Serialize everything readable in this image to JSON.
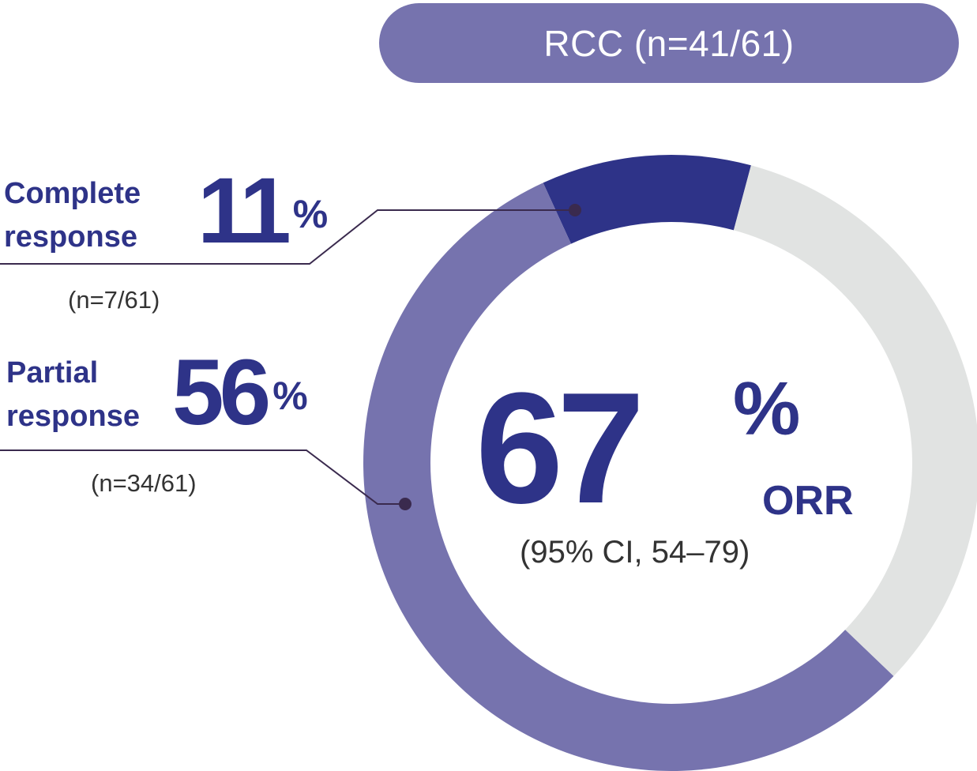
{
  "chart_data": {
    "type": "pie",
    "header": "RCC (n=41/61)",
    "center": {
      "value": "67",
      "unit": "%",
      "label": "ORR",
      "ci": "(95% CI, 54–79)"
    },
    "slices": [
      {
        "key": "complete",
        "label_line1": "Complete",
        "label_line2": "response",
        "value": 11,
        "value_text": "11",
        "unit": "%",
        "n": "(n=7/61)",
        "color": "#2e3388"
      },
      {
        "key": "partial",
        "label_line1": "Partial",
        "label_line2": "response",
        "value": 56,
        "value_text": "56",
        "unit": "%",
        "n": "(n=34/61)",
        "color": "#7673ae"
      },
      {
        "key": "no-response",
        "value": 33,
        "color": "#e1e3e2"
      }
    ],
    "colors": {
      "accent": "#2e3388",
      "secondary": "#7673ae",
      "track": "#e1e3e2",
      "leader": "#3a2a4e"
    }
  }
}
